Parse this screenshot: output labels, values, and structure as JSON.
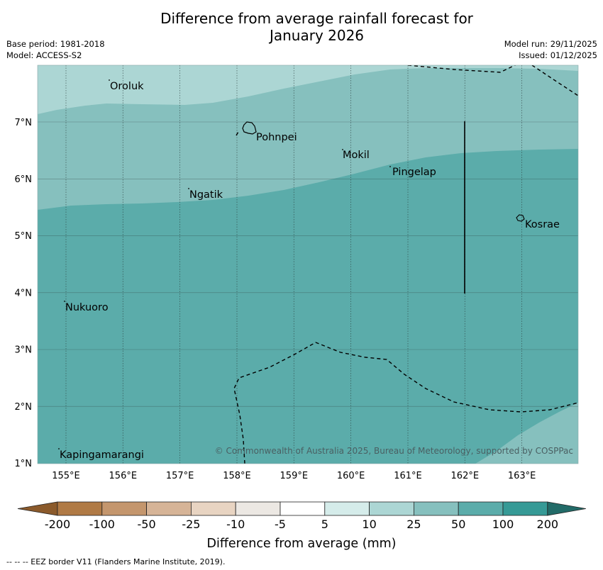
{
  "title_line1": "Difference from average rainfall forecast for",
  "title_line2": "January 2026",
  "meta_left": {
    "base_period": "Base period: 1981-2018",
    "model": "Model: ACCESS-S2"
  },
  "meta_right": {
    "model_run": "Model run: 29/11/2025",
    "issued": "Issued: 01/12/2025"
  },
  "map": {
    "longitude_ticks": [
      "155°E",
      "156°E",
      "157°E",
      "158°E",
      "159°E",
      "160°E",
      "161°E",
      "162°E",
      "163°E"
    ],
    "latitude_ticks": [
      "1°N",
      "2°N",
      "3°N",
      "4°N",
      "5°N",
      "6°N",
      "7°N"
    ],
    "places": [
      {
        "name": "Oroluk"
      },
      {
        "name": "Pohnpei"
      },
      {
        "name": "Mokil"
      },
      {
        "name": "Pingelap"
      },
      {
        "name": "Ngatik"
      },
      {
        "name": "Kosrae"
      },
      {
        "name": "Nukuoro"
      },
      {
        "name": "Kapingamarangi"
      }
    ],
    "credit": "© Commonwealth of Australia 2025, Bureau of Meteorology, supported by COSPPac",
    "category_colors": {
      "10_to_25": "#acd6d4",
      "25_to_50": "#86c0be",
      "50_to_100": "#5bacaa"
    }
  },
  "colorbar": {
    "labels": [
      "-200",
      "-100",
      "-50",
      "-25",
      "-10",
      "-5",
      "5",
      "10",
      "25",
      "50",
      "100",
      "200"
    ],
    "colors": [
      "#8b5a2b",
      "#b07a45",
      "#c4966d",
      "#d6b497",
      "#e8d4c2",
      "#ece8e3",
      "#ffffff",
      "#d5ecea",
      "#acd6d4",
      "#86c0be",
      "#5bacaa",
      "#369a96",
      "#226b68"
    ],
    "title": "Difference from average (mm)"
  },
  "footnote": "--  --  -- EEZ border V11 (Flanders Marine Institute, 2019)."
}
